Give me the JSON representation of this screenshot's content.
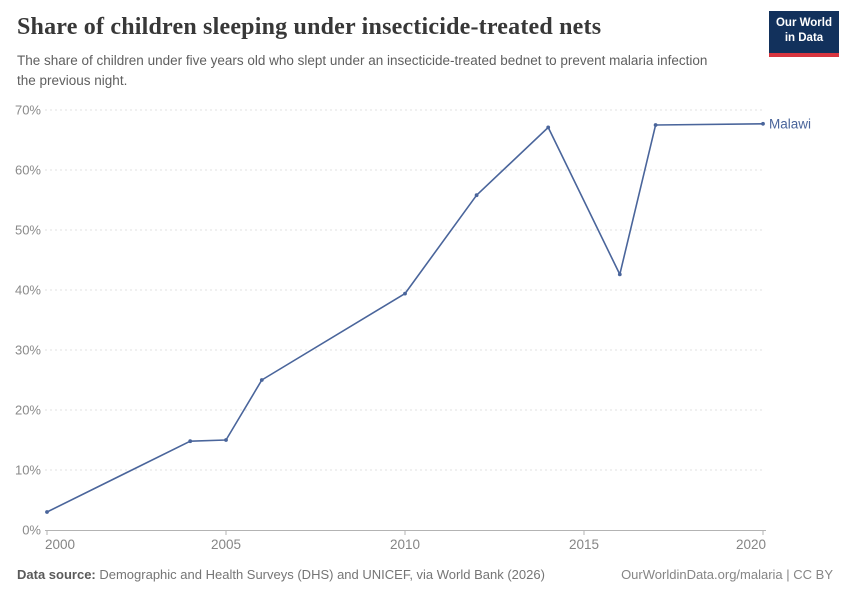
{
  "header": {
    "title": "Share of children sleeping under insecticide-treated nets",
    "subtitle": "The share of children under five years old who slept under an insecticide-treated bednet to prevent malaria infection the previous night.",
    "logo": {
      "line1": "Our World",
      "line2": "in Data"
    }
  },
  "chart_data": {
    "type": "line",
    "title": "Share of children sleeping under insecticide-treated nets",
    "x": [
      2000,
      2004,
      2005,
      2006,
      2010,
      2012,
      2014,
      2016,
      2017,
      2020
    ],
    "series": [
      {
        "name": "Malawi",
        "values": [
          3,
          14.8,
          15,
          25,
          39.4,
          55.8,
          67.1,
          42.6,
          67.5,
          67.7
        ]
      }
    ],
    "xlabel": "",
    "ylabel": "",
    "xlim": [
      2000,
      2020
    ],
    "ylim": [
      0,
      70
    ],
    "xticks": [
      2000,
      2005,
      2010,
      2015,
      2020
    ],
    "yticks": [
      0,
      10,
      20,
      30,
      40,
      50,
      60,
      70
    ],
    "ytick_suffix": "%",
    "grid": "horizontal-dashed",
    "legend_position": "end-of-line-label"
  },
  "footer": {
    "datasource_label": "Data source:",
    "datasource_text": " Demographic and Health Surveys (DHS) and UNICEF, via World Bank (2026)",
    "license_text": "OurWorldinData.org/malaria | CC BY"
  },
  "colors": {
    "line": "#4a659b",
    "grid": "#e1e1e1",
    "axis": "#b3b3b3",
    "tick_text": "#8a8a8a",
    "xtick_text": "#858585"
  }
}
